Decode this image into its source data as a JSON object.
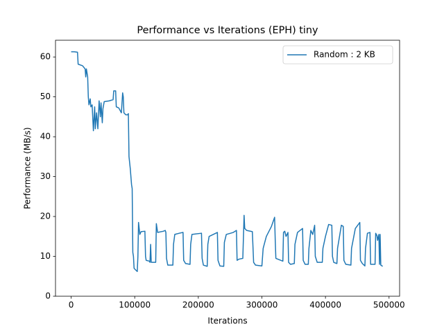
{
  "chart_data": {
    "type": "line",
    "title": "Performance vs Iterations (EPH) tiny",
    "x_label": "Iterations",
    "y_label": "Performance (MB/s)",
    "xlim": [
      -24600,
      516600
    ],
    "ylim": [
      0,
      64.2
    ],
    "xticks": [
      0,
      100000,
      200000,
      300000,
      400000,
      500000
    ],
    "yticks": [
      0,
      10,
      20,
      30,
      40,
      50,
      60
    ],
    "legend": "upper right",
    "series": [
      {
        "name": "Random : 2 KB",
        "color": "#1f77b4",
        "x": [
          0,
          5000,
          10000,
          11000,
          18000,
          22000,
          23000,
          24000,
          26000,
          27000,
          28000,
          30000,
          31000,
          33000,
          35000,
          37000,
          38000,
          40000,
          42000,
          44000,
          46000,
          47000,
          49000,
          50000,
          52000,
          60000,
          66000,
          67000,
          70000,
          71000,
          75000,
          79000,
          81000,
          82000,
          83000,
          86000,
          89000,
          90000,
          91000,
          93000,
          95000,
          96000,
          97000,
          98000,
          99000,
          102000,
          104000,
          105000,
          106000,
          108000,
          110000,
          116000,
          117000,
          118000,
          123000,
          124000,
          125000,
          126000,
          133000,
          134000,
          136000,
          145000,
          148000,
          149000,
          150000,
          152000,
          160000,
          161000,
          163000,
          170000,
          176000,
          177000,
          180000,
          187000,
          188000,
          190000,
          205000,
          206000,
          208000,
          214000,
          215000,
          217000,
          230000,
          231000,
          234000,
          240000,
          241000,
          244000,
          255000,
          260000,
          261000,
          264000,
          270000,
          272000,
          273000,
          276000,
          285000,
          287000,
          290000,
          300000,
          302000,
          307000,
          315000,
          320000,
          321000,
          322000,
          333000,
          334000,
          336000,
          338000,
          341000,
          342000,
          345000,
          351000,
          352000,
          356000,
          364000,
          365000,
          368000,
          373000,
          374000,
          377000,
          380000,
          383000,
          384000,
          387000,
          395000,
          396000,
          400000,
          405000,
          410000,
          411000,
          413000,
          418000,
          419000,
          425000,
          428000,
          429000,
          432000,
          440000,
          441000,
          447000,
          454000,
          455000,
          458000,
          462000,
          463000,
          466000,
          470000,
          471000,
          478000,
          479000,
          481000,
          482000,
          484000,
          485000,
          486000,
          487000,
          490000
        ],
        "values": [
          61.3,
          61.3,
          61.2,
          58.2,
          57.8,
          57,
          55,
          57,
          55,
          50,
          48,
          49.5,
          47.5,
          48,
          41.5,
          47.5,
          42,
          46,
          42,
          49,
          45,
          48.5,
          43.5,
          47,
          48.8,
          49,
          49.3,
          51.5,
          51.5,
          47.5,
          47.2,
          46,
          51,
          50,
          46,
          45.5,
          45.5,
          45.8,
          35,
          32,
          28,
          27,
          11,
          10,
          7,
          6.5,
          6.2,
          10,
          18.5,
          15.5,
          16.2,
          16.3,
          10,
          9,
          8.8,
          8.5,
          13,
          8.5,
          8.5,
          18.2,
          16,
          16.3,
          16.5,
          16,
          9.5,
          7.8,
          7.8,
          13,
          15.5,
          15.8,
          16,
          9,
          8.2,
          8,
          13,
          15.5,
          15.8,
          9.5,
          7.8,
          7.5,
          13,
          15,
          16,
          9,
          7.6,
          7.5,
          13.5,
          15.5,
          16,
          16.5,
          9,
          9.3,
          9.5,
          20.3,
          17,
          16.5,
          16.2,
          8.5,
          7.8,
          7.6,
          12,
          15,
          17.5,
          19.8,
          14,
          9.5,
          8.8,
          16,
          16.3,
          15,
          16,
          8.5,
          8,
          8.2,
          13,
          16,
          17,
          9,
          8,
          8,
          12,
          16.5,
          15.5,
          17.8,
          10,
          8.5,
          8.5,
          12,
          15,
          18,
          17.8,
          10,
          8.5,
          8.2,
          12,
          17.8,
          17.5,
          9,
          8,
          7.8,
          12,
          17,
          18.5,
          9,
          8.2,
          7.6,
          12,
          15.8,
          16,
          8,
          8,
          15.8,
          15.2,
          14,
          15.5,
          8,
          15.5,
          7.8,
          7.5
        ]
      }
    ]
  }
}
